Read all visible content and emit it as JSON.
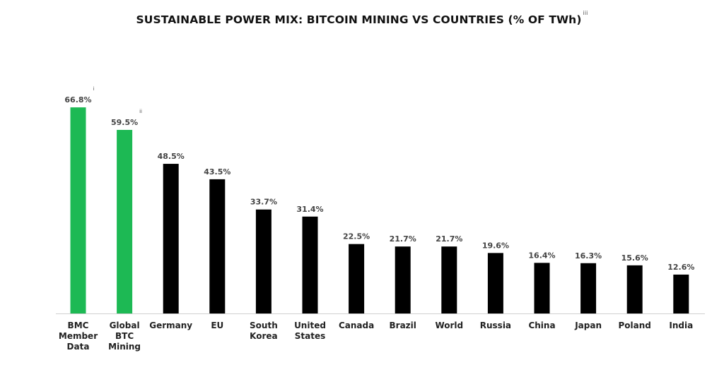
{
  "title": "SUSTAINABLE POWER MIX: BITCOIN MINING VS COUNTRIES (% OF TWh)",
  "title_footnote": "iii",
  "colors": {
    "green": "#1db954",
    "black": "#000000",
    "axis": "#d0d0d0"
  },
  "chart_data": {
    "type": "bar",
    "categories": [
      [
        "BMC",
        "Member",
        "Data"
      ],
      [
        "Global",
        "BTC",
        "Mining"
      ],
      [
        "Germany"
      ],
      [
        "EU"
      ],
      [
        "South",
        "Korea"
      ],
      [
        "United",
        "States"
      ],
      [
        "Canada"
      ],
      [
        "Brazil"
      ],
      [
        "World"
      ],
      [
        "Russia"
      ],
      [
        "China"
      ],
      [
        "Japan"
      ],
      [
        "Poland"
      ],
      [
        "India"
      ]
    ],
    "values": [
      66.8,
      59.5,
      48.5,
      43.5,
      33.7,
      31.4,
      22.5,
      21.7,
      21.7,
      19.6,
      16.4,
      16.3,
      15.6,
      12.6
    ],
    "value_labels": [
      "66.8%",
      "59.5%",
      "48.5%",
      "43.5%",
      "33.7%",
      "31.4%",
      "22.5%",
      "21.7%",
      "21.7%",
      "19.6%",
      "16.4%",
      "16.3%",
      "15.6%",
      "12.6%"
    ],
    "bar_colors": [
      "green",
      "green",
      "black",
      "black",
      "black",
      "black",
      "black",
      "black",
      "black",
      "black",
      "black",
      "black",
      "black",
      "black"
    ],
    "footnotes": [
      "i",
      "ii",
      "",
      "",
      "",
      "",
      "",
      "",
      "",
      "",
      "",
      "",
      "",
      ""
    ],
    "ylim": [
      0,
      100
    ]
  }
}
